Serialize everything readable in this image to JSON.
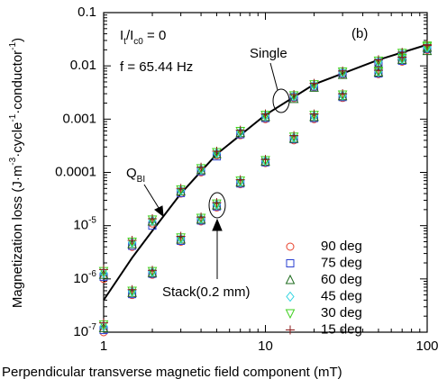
{
  "chart_data": {
    "type": "scatter",
    "x_label": "Perpendicular transverse magnetic field component (mT)",
    "y_label": {
      "parts": [
        "Magnetization loss (J·m",
        "-3",
        "·cycle",
        "-1",
        "·conductor",
        "-1",
        ")"
      ]
    },
    "log_x": true,
    "log_y": true,
    "xlim": [
      1,
      100
    ],
    "xticks": [
      1,
      10,
      100
    ],
    "ylim": [
      1e-07,
      0.1
    ],
    "yticks": [
      {
        "value": 1e-07,
        "label": "10",
        "exp": "-7"
      },
      {
        "value": 1e-06,
        "label": "10",
        "exp": "-6"
      },
      {
        "value": 1e-05,
        "label": "10",
        "exp": "-5"
      },
      0.0001,
      0.001,
      0.01,
      0.1
    ],
    "annotations": {
      "condition": {
        "parts": [
          "I",
          "t",
          "/I",
          "c0",
          " = 0"
        ]
      },
      "frequency": "f = 65.44 Hz",
      "panel": "(b)",
      "single": "Single",
      "stack": "Stack(0.2 mm)",
      "theory": {
        "parts": [
          "Q",
          "BI"
        ]
      }
    },
    "x": [
      1,
      1.5,
      2,
      3,
      4,
      5,
      7,
      10,
      15,
      20,
      30,
      50,
      70,
      100,
      1,
      1.5,
      2,
      3,
      4,
      5,
      7,
      10,
      15,
      20,
      30,
      50,
      70,
      100
    ],
    "series": [
      {
        "name": "90 deg",
        "color": "#e8402a",
        "marker": "circle",
        "values": [
          1e-06,
          4e-06,
          1.1e-05,
          4e-05,
          0.0001,
          0.00021,
          0.0005,
          0.001,
          0.0025,
          0.004,
          0.007,
          0.011,
          0.016,
          0.02,
          1e-07,
          5e-07,
          1.2e-06,
          5e-06,
          1.2e-05,
          2.2e-05,
          6e-05,
          0.00015,
          0.0004,
          0.001,
          0.0025,
          0.007,
          0.012,
          0.02
        ]
      },
      {
        "name": "75 deg",
        "color": "#2a3fd0",
        "marker": "square",
        "values": [
          1.1e-06,
          4.2e-06,
          1e-05,
          4.1e-05,
          0.000105,
          0.0002,
          0.00052,
          0.00105,
          0.0026,
          0.0041,
          0.0072,
          0.0115,
          0.016,
          0.021,
          1.1e-07,
          5.2e-07,
          1.25e-06,
          5.2e-06,
          1.25e-05,
          2.3e-05,
          6.2e-05,
          0.000155,
          0.00042,
          0.00105,
          0.0026,
          0.0072,
          0.0125,
          0.021
        ]
      },
      {
        "name": "60 deg",
        "color": "#1e6b1e",
        "marker": "triangle",
        "values": [
          1.2e-06,
          4.5e-06,
          1.2e-05,
          4.4e-05,
          0.00011,
          0.00022,
          0.00055,
          0.0011,
          0.0024,
          0.0039,
          0.0068,
          0.0105,
          0.015,
          0.019,
          1.2e-07,
          5.5e-07,
          1.3e-06,
          5.5e-06,
          1.3e-05,
          2.4e-05,
          6.5e-05,
          0.00016,
          0.00043,
          0.0011,
          0.0027,
          0.0075,
          0.013,
          0.022
        ]
      },
      {
        "name": "45 deg",
        "color": "#2ed3e0",
        "marker": "diamond",
        "values": [
          1.3e-06,
          4.8e-06,
          1.25e-05,
          4.6e-05,
          0.000115,
          0.00023,
          0.00057,
          0.00115,
          0.0027,
          0.0043,
          0.0075,
          0.012,
          0.017,
          0.022,
          1.3e-07,
          5.8e-07,
          1.35e-06,
          5.7e-06,
          1.35e-05,
          2.5e-05,
          6.7e-05,
          0.000165,
          0.00045,
          0.00115,
          0.0028,
          0.0078,
          0.0135,
          0.023
        ]
      },
      {
        "name": "30 deg",
        "color": "#40d020",
        "marker": "triangle-down",
        "values": [
          1.4e-06,
          5e-06,
          1.3e-05,
          4.8e-05,
          0.00012,
          0.00024,
          0.0006,
          0.0012,
          0.0028,
          0.0045,
          0.0078,
          0.0125,
          0.0175,
          0.023,
          1.4e-07,
          6e-07,
          1.4e-06,
          6e-06,
          1.4e-05,
          2.6e-05,
          7e-05,
          0.00017,
          0.00047,
          0.0012,
          0.0029,
          0.008,
          0.014,
          0.024
        ]
      },
      {
        "name": "15 deg",
        "color": "#8b1a1a",
        "marker": "plus",
        "values": [
          1.5e-06,
          5.3e-06,
          1.35e-05,
          5e-05,
          0.000125,
          0.00025,
          0.00062,
          0.00125,
          0.0029,
          0.0047,
          0.008,
          0.013,
          0.018,
          0.024,
          1.5e-07,
          6.3e-07,
          1.45e-06,
          6.3e-06,
          1.45e-05,
          2.7e-05,
          7.3e-05,
          0.000175,
          0.00049,
          0.00125,
          0.003,
          0.0083,
          0.0145,
          0.025
        ]
      }
    ],
    "theory_line": {
      "color": "#000000",
      "x": [
        1,
        1.5,
        2,
        3,
        5,
        10,
        20,
        50,
        100
      ],
      "values": [
        4e-07,
        2.5e-06,
        8e-06,
        4e-05,
        0.00022,
        0.0012,
        0.0045,
        0.013,
        0.025
      ]
    },
    "legend": "lower right"
  }
}
